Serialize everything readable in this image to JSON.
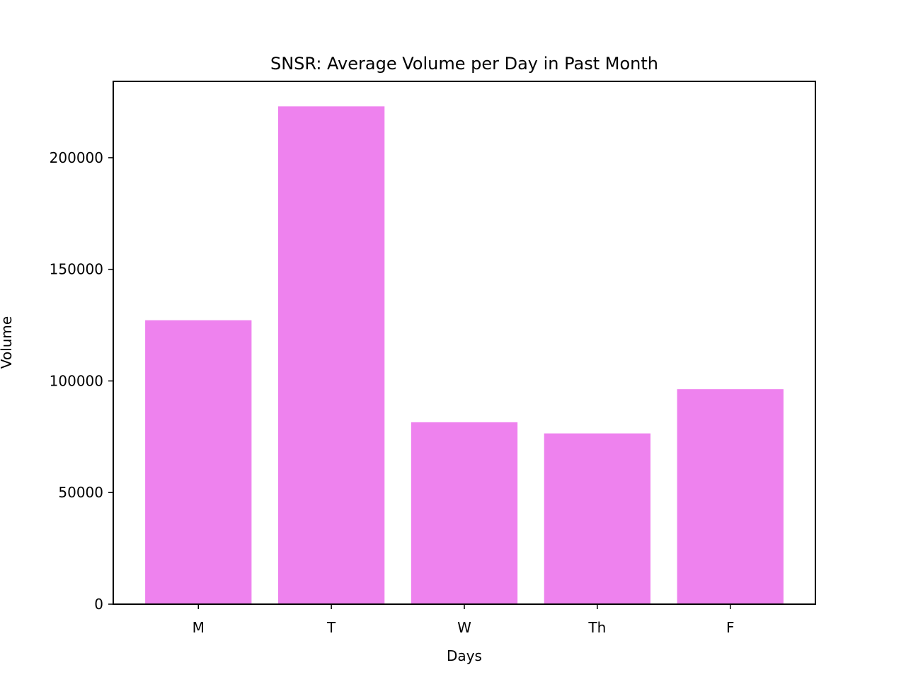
{
  "chart_data": {
    "type": "bar",
    "title": "SNSR: Average Volume per Day in Past Month",
    "xlabel": "Days",
    "ylabel": "Volume",
    "categories": [
      "M",
      "T",
      "W",
      "Th",
      "F"
    ],
    "values": [
      127200,
      223000,
      81500,
      76500,
      96300
    ],
    "ylim": [
      0,
      234200
    ],
    "yticks": [
      0,
      50000,
      100000,
      150000,
      200000
    ],
    "ytick_labels": [
      "0",
      "50000",
      "100000",
      "150000",
      "200000"
    ],
    "grid": false,
    "legend": "none",
    "bar_color": "#ee82ee"
  }
}
